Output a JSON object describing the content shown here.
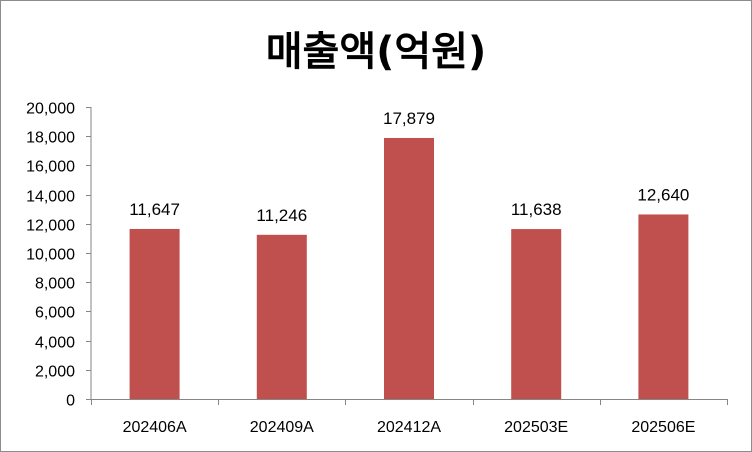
{
  "chart_data": {
    "type": "bar",
    "title": "매출액(억원)",
    "categories": [
      "202406A",
      "202409A",
      "202412A",
      "202503E",
      "202506E"
    ],
    "values": [
      11647,
      11246,
      17879,
      11638,
      12640
    ],
    "value_labels": [
      "11,647",
      "11,246",
      "17,879",
      "11,638",
      "12,640"
    ],
    "y_tick_labels": [
      "0",
      "2,000",
      "4,000",
      "6,000",
      "8,000",
      "10,000",
      "12,000",
      "14,000",
      "16,000",
      "18,000",
      "20,000"
    ],
    "ylim": [
      0,
      20000
    ],
    "y_step": 2000,
    "bar_color": "#C0504D",
    "grid": false,
    "legend": "none",
    "xlabel": "",
    "ylabel": ""
  }
}
